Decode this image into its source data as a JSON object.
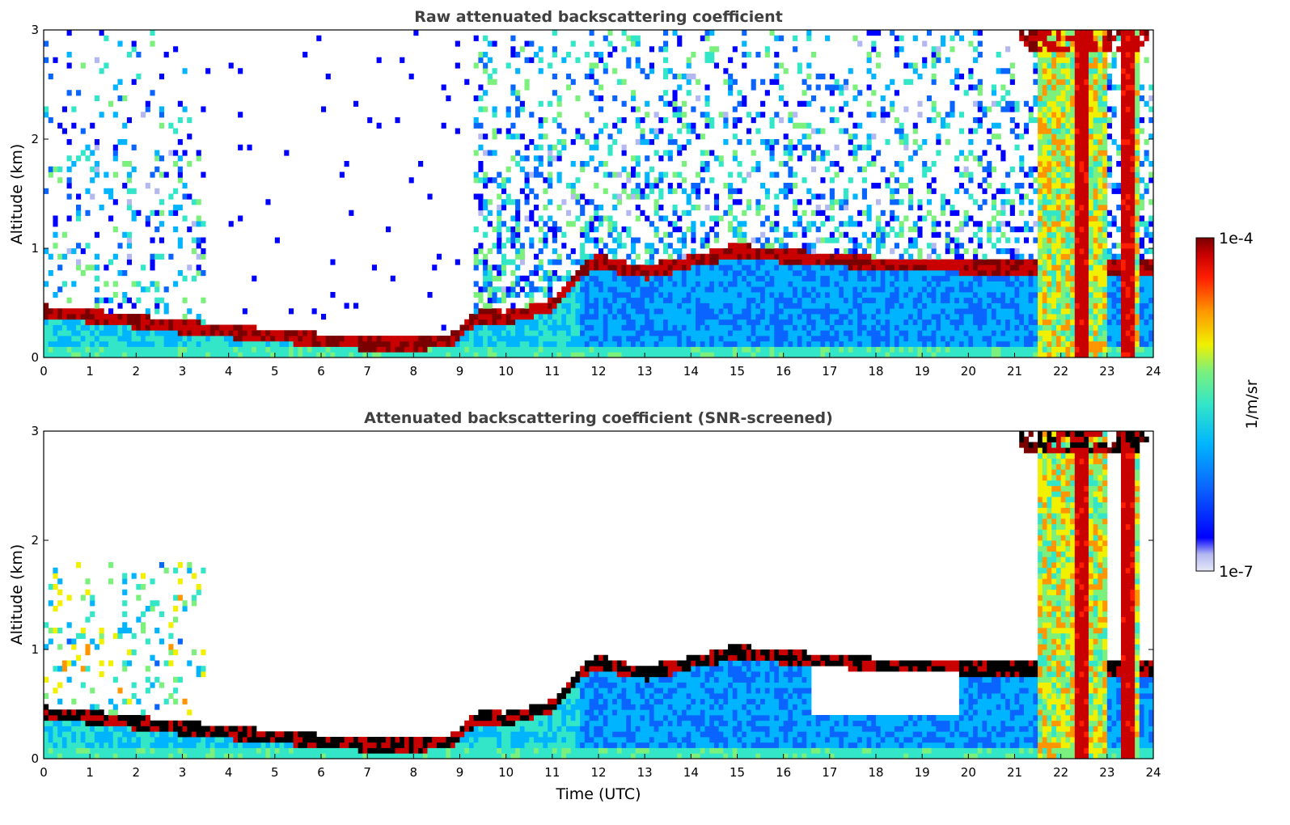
{
  "chart_data": [
    {
      "type": "heatmap",
      "title": "Raw attenuated backscattering coefficient",
      "xlabel": "",
      "ylabel": "Altitude (km)",
      "xlim": [
        0,
        24
      ],
      "ylim": [
        0,
        3
      ],
      "x_ticks": [
        "0",
        "1",
        "2",
        "3",
        "4",
        "5",
        "6",
        "7",
        "8",
        "9",
        "10",
        "11",
        "12",
        "13",
        "14",
        "15",
        "16",
        "17",
        "18",
        "19",
        "20",
        "21",
        "22",
        "23",
        "24"
      ],
      "y_ticks": [
        "0",
        "1",
        "2",
        "3"
      ],
      "features": {
        "boundary_layer_top_km": [
          [
            0,
            0.44
          ],
          [
            1,
            0.4
          ],
          [
            2,
            0.35
          ],
          [
            3,
            0.3
          ],
          [
            4,
            0.26
          ],
          [
            5,
            0.22
          ],
          [
            6,
            0.18
          ],
          [
            7,
            0.15
          ],
          [
            8,
            0.14
          ],
          [
            8.8,
            0.18
          ],
          [
            9.4,
            0.4
          ],
          [
            10,
            0.38
          ],
          [
            11,
            0.5
          ],
          [
            11.6,
            0.8
          ],
          [
            12,
            0.9
          ],
          [
            13,
            0.8
          ],
          [
            14,
            0.9
          ],
          [
            15,
            1.0
          ],
          [
            16,
            0.95
          ],
          [
            17,
            0.92
          ],
          [
            18,
            0.88
          ],
          [
            19,
            0.88
          ],
          [
            20,
            0.85
          ],
          [
            21,
            0.85
          ],
          [
            24,
            0.85
          ]
        ],
        "noise_free_window_hours": [
          3.5,
          9.3
        ],
        "precipitation_columns_hours": [
          [
            21.5,
            23.0
          ],
          [
            23.3,
            23.7
          ]
        ],
        "high_cloud_base_km": 2.8
      }
    },
    {
      "type": "heatmap",
      "title": "Attenuated backscattering coefficient (SNR-screened)",
      "xlabel": "Time (UTC)",
      "ylabel": "Altitude (km)",
      "xlim": [
        0,
        24
      ],
      "ylim": [
        0,
        3
      ],
      "x_ticks": [
        "0",
        "1",
        "2",
        "3",
        "4",
        "5",
        "6",
        "7",
        "8",
        "9",
        "10",
        "11",
        "12",
        "13",
        "14",
        "15",
        "16",
        "17",
        "18",
        "19",
        "20",
        "21",
        "22",
        "23",
        "24"
      ],
      "y_ticks": [
        "0",
        "1",
        "2",
        "3"
      ],
      "features": {
        "screened_gap_hours": [
          16.6,
          19.8
        ],
        "screened_gap_floor_km": 0.38
      }
    }
  ],
  "colorbar": {
    "label": "1/m/sr",
    "max_label": "1e-4",
    "min_label": "1e-7",
    "scale": "log",
    "colormap": [
      "#e6e8f7",
      "#b4b8f0",
      "#0000ff",
      "#0a64ff",
      "#00b4ff",
      "#33e6c8",
      "#7cf07c",
      "#f0f000",
      "#ff9600",
      "#ff1e00",
      "#c80000",
      "#7a0000"
    ]
  }
}
